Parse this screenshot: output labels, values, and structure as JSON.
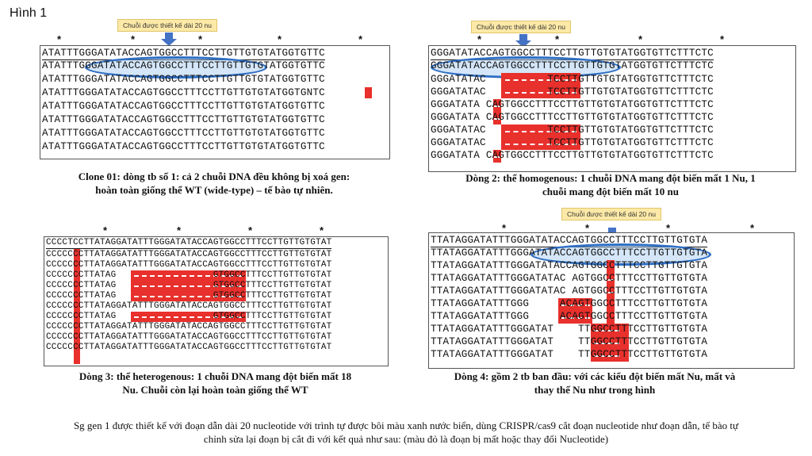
{
  "figure_title": "Hình 1",
  "star_symbol": "*",
  "panels": [
    {
      "id": "p1",
      "callout": "Chuỗi được thiết kế dài 20 nu",
      "rows": [
        "ATATTTGGGATATACCAGTGGCCTTTCCTTGTTGTGTATGGTGTTC",
        "ATATTTGGGATATACCAGTGGCCTTTCCTTGTTGTGTATGGTGTTC",
        "ATATTTGGGATATACCAGTGGCCTTTCCTTGTTGTGTATGGTGTTC",
        "ATATTTGGGATATACCAGTGGCCTTTCCTTGTTGTGTATGGTGNTC",
        "ATATTTGGGATATACCAGTGGCCTTTCCTTGTTGTGTATGGTGTTC",
        "ATATTTGGGATATACCAGTGGCCTTTCCTTGTTGTGTATGGTGTTC",
        "ATATTTGGGATATACCAGTGGCCTTTCCTTGTTGTGTATGGTGTTC",
        "ATATTTGGGATATACCAGTGGCCTTTCCTTGTTGTGTATGGTGTTC"
      ],
      "caption_line1": "Clone 01: dòng tb số 1: cả 2 chuỗi DNA đều không bị xoá gen:",
      "caption_line2": "hoàn toàn giống thể WT (wide-type) – tế bào tự nhiên."
    },
    {
      "id": "p2",
      "callout": "Chuỗi được thiết kế dài 20 nu",
      "rows": [
        "GGGATATACCAGTGGCCTTTCCTTGTTGTGTATGGTGTTCTTTCTC",
        "GGGATATACCAGTGGCCTTTCCTTGTTGTGTATGGTGTTCTTTCTC",
        "GGGATATAC          TCCTTGTTGTGTATGGTGTTCTTTCTC",
        "GGGATATAC          TCCTTGTTGTGTATGGTGTTCTTTCTC",
        "GGGATATA CAGTGGCCTTTCCTTGTTGTGTATGGTGTTCTTTCTC",
        "GGGATATA CAGTGGCCTTTCCTTGTTGTGTATGGTGTTCTTTCTC",
        "GGGATATAC          TCCTTGTTGTGTATGGTGTTCTTTCTC",
        "GGGATATAC          TCCTTGTTGTGTATGGTGTTCTTTCTC",
        "GGGATATA CAGTGGCCTTTCCTTGTTGTGTATGGTGTTCTTTCTC"
      ],
      "caption_line1": "Dòng 2: thể homogenous: 1 chuỗi DNA mang đột biến mất 1 Nu,  1",
      "caption_line2": "chuỗi mang đột biến mất 10 nu"
    },
    {
      "id": "p3",
      "rows": [
        "CCCCTCCTTATAGGATATTTGGGATATACCAGTGGCCTTTCCTTGTTGTGTAT",
        "CCCCCCCTTATAGGATATTTGGGATATACCAGTGGCCTTTCCTTGTTGTGTAT",
        "CCCCCCCTTATAGGATATTTGGGATATACCAGTGGCCTTTCCTTGTTGTGTAT",
        "CCCCCCCTTATAG                  GTGGCCTTTCCTTGTTGTGTAT",
        "CCCCCCCTTATAG                  GTGGCCTTTCCTTGTTGTGTAT",
        "CCCCCCCTTATAG                  GTGGCCTTTCCTTGTTGTGTAT",
        "CCCCCCCTTATAGGATATTTGGGATATACCAGTGGCCTTTCCTTGTTGTGTAT",
        "CCCCCCCTTATAG                  GTGGCCTTTCCTTGTTGTGTAT",
        "CCCCCCCTTATAGGATATTTGGGATATACCAGTGGCCTTTCCTTGTTGTGTAT",
        "CCCCCCCTTATAGGATATTTGGGATATACCAGTGGCCTTTCCTTGTTGTGTAT",
        "CCCCCCCTTATAGGATATTTGGGATATACCAGTGGCCTTTCCTTGTTGTGTAT"
      ],
      "caption_line1": "Dòng 3: thể heterogenous: 1 chuỗi DNA mang đột biến mất 18",
      "caption_line2": "Nu. Chuỗi còn lại hoàn toàn giống thể WT"
    },
    {
      "id": "p4",
      "callout": "Chuỗi được thiết kế dài 20 nu",
      "rows": [
        "TTATAGGATATTTGGGATATACCAGTGGCCTTTCCTTGTTGTGTA",
        "TTATAGGATATTTGGGATATACCAGTGGCCTTTCCTTGTTGTGTA",
        "TTATAGGATATTTGGGATATACCAGTGGCCTTTCCTTGTTGTGTA",
        "TTATAGGATATTTGGGATATAC AGTGGCCTTTCCTTGTTGTGTA",
        "TTATAGGATATTTGGGATATAC AGTGGCCTTTCCTTGTTGTGTA",
        "TTATAGGATATTTGGG     ACAGTGGCCTTTCCTTGTTGTGTA",
        "TTATAGGATATTTGGG     ACAGTGGCCTTTCCTTGTTGTGTA",
        "TTATAGGATATTTGGGATAT    TTGGCCTTTCCTTGTTGTGTA",
        "TTATAGGATATTTGGGATAT    TTGGCCTTTCCTTGTTGTGTA",
        "TTATAGGATATTTGGGATAT    TTGGCCTTTCCTTGTTGTGTA"
      ],
      "caption_line1": "Dòng 4: gồm 2 tb ban đầu: với các kiểu đột biến mất Nu, mất và",
      "caption_line2": "thay thế  Nu như trong hình"
    }
  ],
  "footer_line1": "Sg gen 1 được thiết kế với đoạn dẫn dài 20 nucleotide với trình tự được bôi màu xanh nước biển, dùng CRISPR/cas9 cắt đoạn nucleotide như đoạn dẫn, tế bào tự",
  "footer_line2": "chỉnh sửa lại đoạn bị cắt đi với kết quả như sau: (màu đỏ là đoạn bị mất hoặc thay đổi Nucleotide)",
  "colors": {
    "deletion": "#e8302c",
    "guide": "#2f6fc4",
    "arrow": "#4472c4",
    "callout": "#fde9a7"
  }
}
